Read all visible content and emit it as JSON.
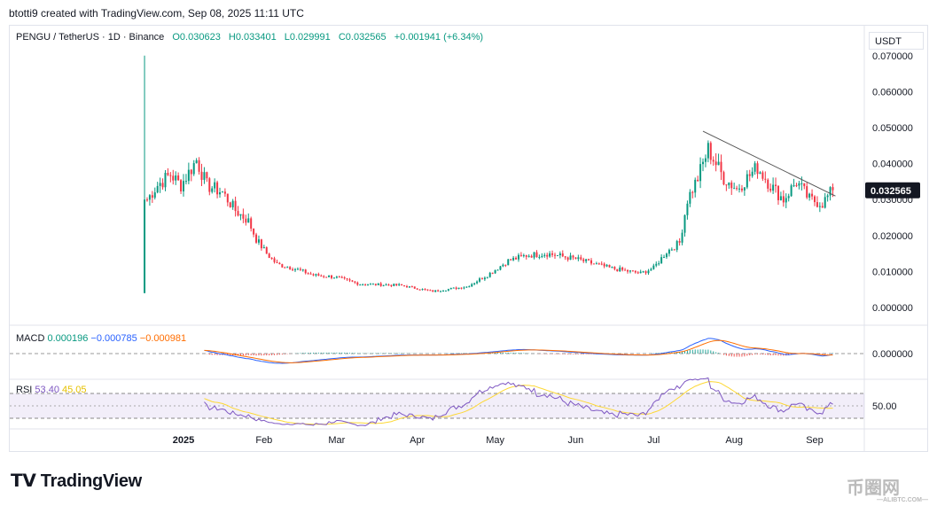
{
  "credit": "btotti9 created with TradingView.com, Sep 08, 2025 11:11 UTC",
  "legend": {
    "symbol": "PENGU / TetherUS · 1D · Binance",
    "open": "O0.030623",
    "high": "H0.033401",
    "low": "L0.029991",
    "close": "C0.032565",
    "change": "+0.001941 (+6.34%)"
  },
  "currency": "USDT",
  "macd": {
    "label": "MACD",
    "hist": "0.000196",
    "macd": "−0.000785",
    "signal": "−0.000981",
    "axis_label": "0.000000"
  },
  "rsi": {
    "label": "RSI",
    "value": "53.40",
    "ma": "45.05",
    "axis_label": "50.00"
  },
  "brand": "TradingView",
  "watermark": {
    "text": "币圈网",
    "sub": "—ALIBTC.COM—"
  },
  "colors": {
    "up": "#089981",
    "down": "#f23645",
    "macd": "#2962ff",
    "signal": "#ff6d00",
    "rsi": "#7e57c2",
    "rsima": "#fdd835"
  },
  "chart_data": {
    "type": "candlestick",
    "title": "PENGU / TetherUS · 1D · Binance",
    "ylim": [
      -0.002,
      0.072
    ],
    "y_ticks": [
      "0.070000",
      "0.060000",
      "0.050000",
      "0.040000",
      "0.030000",
      "0.020000",
      "0.010000",
      "0.000000"
    ],
    "y_tick_values": [
      0.07,
      0.06,
      0.05,
      0.04,
      0.03,
      0.02,
      0.01,
      0.0
    ],
    "last_price_label": "0.032565",
    "last_price": 0.032565,
    "x_ticks": [
      {
        "label": "2025",
        "date": "2025-01-01"
      },
      {
        "label": "Feb",
        "date": "2025-02-01"
      },
      {
        "label": "Mar",
        "date": "2025-03-01"
      },
      {
        "label": "Apr",
        "date": "2025-04-01"
      },
      {
        "label": "May",
        "date": "2025-05-01"
      },
      {
        "label": "Jun",
        "date": "2025-06-01"
      },
      {
        "label": "Jul",
        "date": "2025-07-01"
      },
      {
        "label": "Aug",
        "date": "2025-08-01"
      },
      {
        "label": "Sep",
        "date": "2025-09-01"
      }
    ],
    "first_candle": {
      "date": "2024-12-17",
      "open": 0.004,
      "high": 0.07,
      "low": 0.004,
      "close": 0.03
    },
    "close_keypoints": [
      [
        "2024-12-18",
        0.03
      ],
      [
        "2024-12-22",
        0.034
      ],
      [
        "2024-12-27",
        0.037
      ],
      [
        "2024-12-31",
        0.034
      ],
      [
        "2025-01-06",
        0.041
      ],
      [
        "2025-01-10",
        0.034
      ],
      [
        "2025-01-16",
        0.032
      ],
      [
        "2025-01-21",
        0.027
      ],
      [
        "2025-01-26",
        0.024
      ],
      [
        "2025-01-29",
        0.019
      ],
      [
        "2025-02-02",
        0.015
      ],
      [
        "2025-02-06",
        0.012
      ],
      [
        "2025-02-12",
        0.011
      ],
      [
        "2025-02-20",
        0.009
      ],
      [
        "2025-02-28",
        0.0085
      ],
      [
        "2025-03-10",
        0.0065
      ],
      [
        "2025-03-25",
        0.0062
      ],
      [
        "2025-04-07",
        0.0045
      ],
      [
        "2025-04-20",
        0.0058
      ],
      [
        "2025-04-28",
        0.009
      ],
      [
        "2025-05-06",
        0.013
      ],
      [
        "2025-05-13",
        0.0145
      ],
      [
        "2025-05-21",
        0.015
      ],
      [
        "2025-06-01",
        0.0135
      ],
      [
        "2025-06-14",
        0.011
      ],
      [
        "2025-06-26",
        0.0095
      ],
      [
        "2025-07-01",
        0.011
      ],
      [
        "2025-07-06",
        0.0155
      ],
      [
        "2025-07-11",
        0.018
      ],
      [
        "2025-07-14",
        0.03
      ],
      [
        "2025-07-18",
        0.036
      ],
      [
        "2025-07-22",
        0.044
      ],
      [
        "2025-07-28",
        0.036
      ],
      [
        "2025-08-02",
        0.033
      ],
      [
        "2025-08-10",
        0.039
      ],
      [
        "2025-08-15",
        0.034
      ],
      [
        "2025-08-20",
        0.03
      ],
      [
        "2025-08-25",
        0.035
      ],
      [
        "2025-08-30",
        0.03
      ],
      [
        "2025-09-04",
        0.029
      ],
      [
        "2025-09-08",
        0.0326
      ]
    ],
    "trendline": [
      [
        "2025-07-20",
        0.049
      ],
      [
        "2025-09-09",
        0.031
      ]
    ]
  }
}
